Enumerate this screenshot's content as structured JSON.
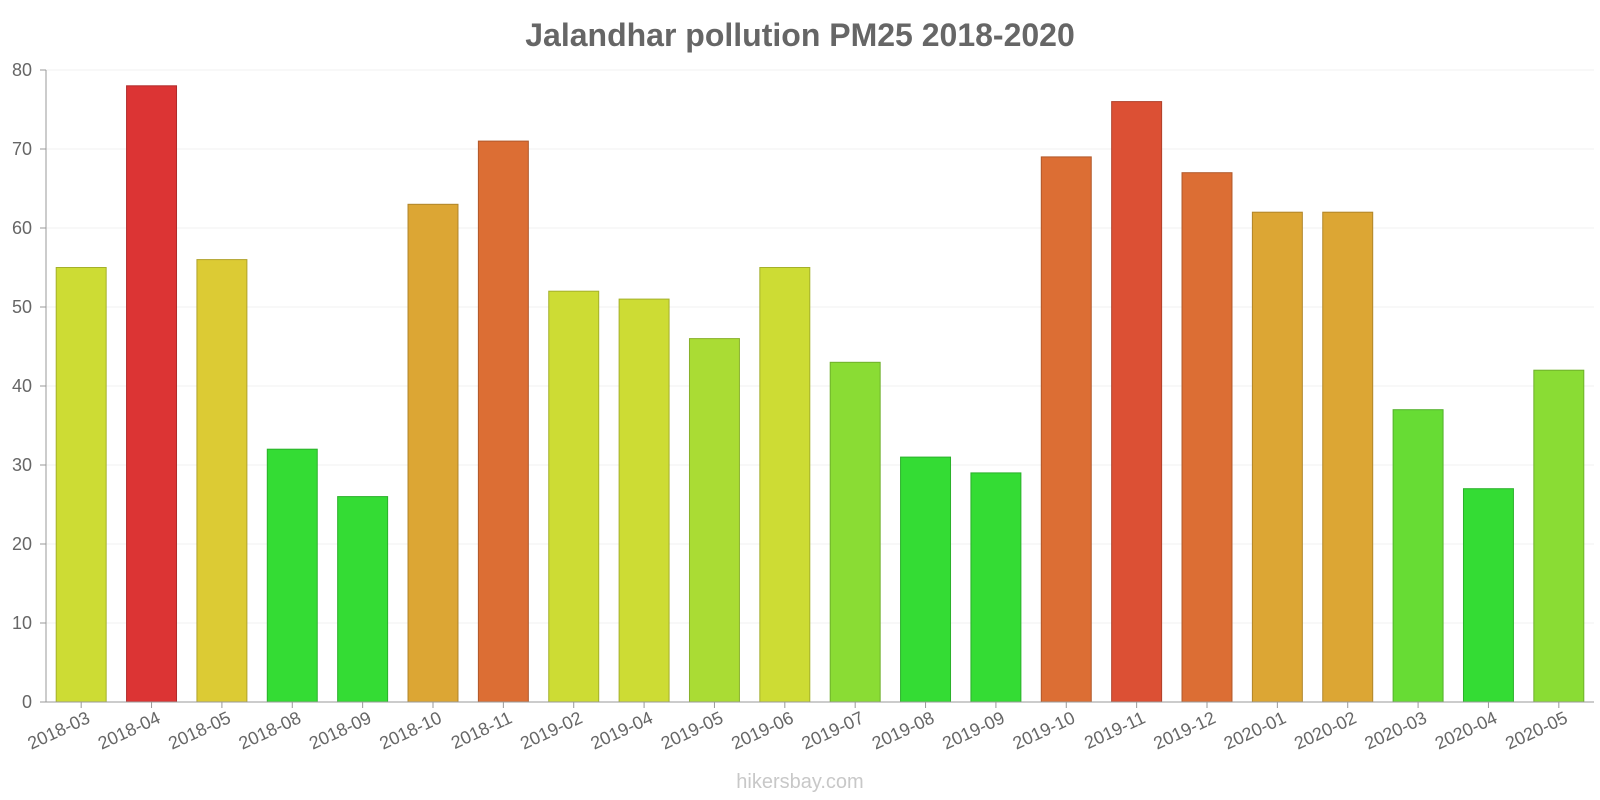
{
  "chart_data": {
    "type": "bar",
    "title": "Jalandhar pollution PM25 2018-2020",
    "xlabel": "",
    "ylabel": "",
    "ylim": [
      0,
      80
    ],
    "yticks": [
      0,
      10,
      20,
      30,
      40,
      50,
      60,
      70,
      80
    ],
    "grid": true,
    "categories": [
      "2018-03",
      "2018-04",
      "2018-05",
      "2018-08",
      "2018-09",
      "2018-10",
      "2018-11",
      "2019-02",
      "2019-04",
      "2019-05",
      "2019-06",
      "2019-07",
      "2019-08",
      "2019-09",
      "2019-10",
      "2019-11",
      "2019-12",
      "2020-01",
      "2020-02",
      "2020-03",
      "2020-04",
      "2020-05"
    ],
    "values": [
      55,
      78,
      56,
      32,
      26,
      63,
      71,
      52,
      51,
      46,
      55,
      43,
      31,
      29,
      69,
      76,
      67,
      62,
      62,
      37,
      27,
      42
    ],
    "colors": [
      "#cddc34",
      "#dc3434",
      "#dccb34",
      "#34dc34",
      "#34dc34",
      "#dca634",
      "#dc6e34",
      "#cddc34",
      "#cddc34",
      "#aadc34",
      "#cddc34",
      "#8adc34",
      "#34dc34",
      "#34dc34",
      "#dc6e34",
      "#dc5034",
      "#dc6e34",
      "#dca634",
      "#dca634",
      "#67dc34",
      "#34dc34",
      "#8adc34"
    ]
  },
  "footer": {
    "watermark": "hikersbay.com"
  }
}
